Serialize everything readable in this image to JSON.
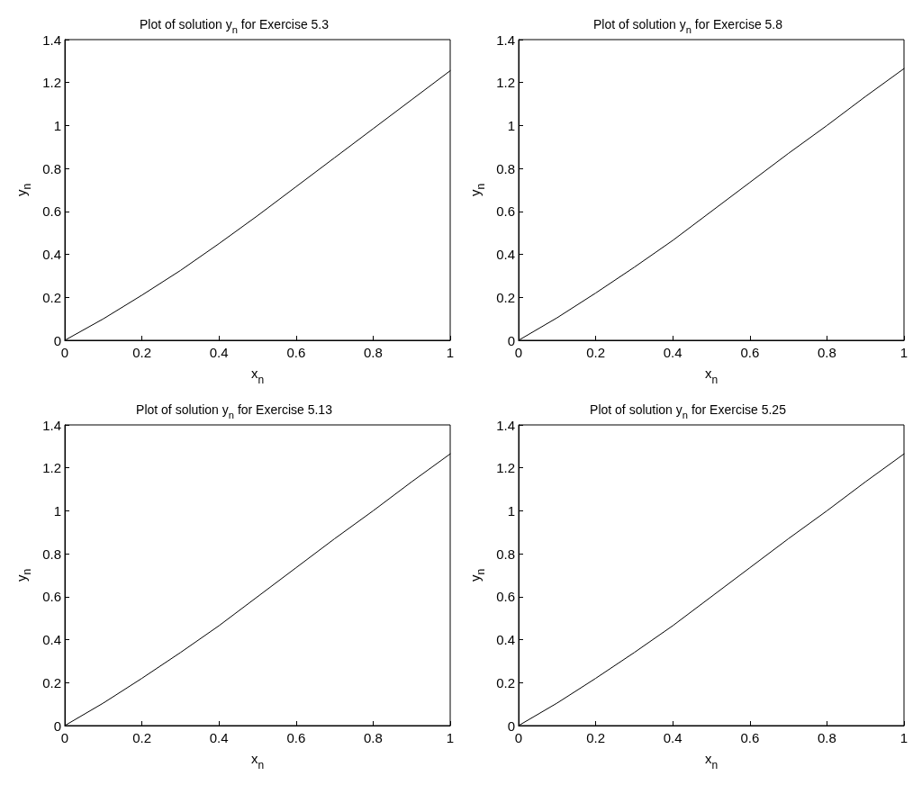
{
  "chart_data": [
    {
      "type": "line",
      "title": "Plot of solution y$_{n}$ for Exercise 5.3",
      "xlabel": "x$_{n}$",
      "ylabel": "y$_{n}$",
      "x": [
        0,
        0.1,
        0.2,
        0.3,
        0.4,
        0.5,
        0.6,
        0.7,
        0.8,
        0.9,
        1
      ],
      "series": [
        {
          "color": "#000000",
          "values": [
            0,
            0.1,
            0.21,
            0.325,
            0.45,
            0.58,
            0.715,
            0.85,
            0.985,
            1.12,
            1.255
          ]
        }
      ],
      "xlim": [
        0,
        1
      ],
      "ylim": [
        0,
        1.4
      ],
      "xticks": [
        0,
        0.2,
        0.4,
        0.6,
        0.8,
        1
      ],
      "yticks": [
        0,
        0.2,
        0.4,
        0.6,
        0.8,
        1,
        1.2,
        1.4
      ],
      "grid": false,
      "marker": "none",
      "line_style": "solid"
    },
    {
      "type": "line",
      "title": "Plot of solution y$_{n}$ for Exercise 5.8",
      "xlabel": "x$_{n}$",
      "ylabel": "y$_{n}$",
      "x": [
        0,
        0.1,
        0.2,
        0.3,
        0.4,
        0.5,
        0.6,
        0.7,
        0.8,
        0.9,
        1
      ],
      "series": [
        {
          "color": "#000000",
          "values": [
            0,
            0.105,
            0.22,
            0.34,
            0.465,
            0.6,
            0.735,
            0.87,
            1.0,
            1.135,
            1.265
          ]
        }
      ],
      "xlim": [
        0,
        1
      ],
      "ylim": [
        0,
        1.4
      ],
      "xticks": [
        0,
        0.2,
        0.4,
        0.6,
        0.8,
        1
      ],
      "yticks": [
        0,
        0.2,
        0.4,
        0.6,
        0.8,
        1,
        1.2,
        1.4
      ],
      "grid": false,
      "marker": "none",
      "line_style": "solid"
    },
    {
      "type": "line",
      "title": "Plot of solution y$_{n}$ for Exercise 5.13",
      "xlabel": "x$_{n}$",
      "ylabel": "y$_{n}$",
      "x": [
        0,
        0.1,
        0.2,
        0.3,
        0.4,
        0.5,
        0.6,
        0.7,
        0.8,
        0.9,
        1
      ],
      "series": [
        {
          "color": "#000000",
          "values": [
            0,
            0.105,
            0.22,
            0.34,
            0.465,
            0.6,
            0.735,
            0.87,
            1.0,
            1.135,
            1.265
          ]
        }
      ],
      "xlim": [
        0,
        1
      ],
      "ylim": [
        0,
        1.4
      ],
      "xticks": [
        0,
        0.2,
        0.4,
        0.6,
        0.8,
        1
      ],
      "yticks": [
        0,
        0.2,
        0.4,
        0.6,
        0.8,
        1,
        1.2,
        1.4
      ],
      "grid": false,
      "marker": "none",
      "line_style": "solid"
    },
    {
      "type": "line",
      "title": "Plot of solution y$_{n}$ for Exercise 5.25",
      "xlabel": "x$_{n}$",
      "ylabel": "y$_{n}$",
      "x": [
        0,
        0.1,
        0.2,
        0.3,
        0.4,
        0.5,
        0.6,
        0.7,
        0.8,
        0.9,
        1
      ],
      "series": [
        {
          "color": "#000000",
          "values": [
            0,
            0.105,
            0.22,
            0.34,
            0.465,
            0.6,
            0.735,
            0.87,
            1.0,
            1.135,
            1.265
          ]
        }
      ],
      "xlim": [
        0,
        1
      ],
      "ylim": [
        0,
        1.4
      ],
      "xticks": [
        0,
        0.2,
        0.4,
        0.6,
        0.8,
        1
      ],
      "yticks": [
        0,
        0.2,
        0.4,
        0.6,
        0.8,
        1,
        1.2,
        1.4
      ],
      "grid": false,
      "marker": "none",
      "line_style": "solid"
    }
  ]
}
